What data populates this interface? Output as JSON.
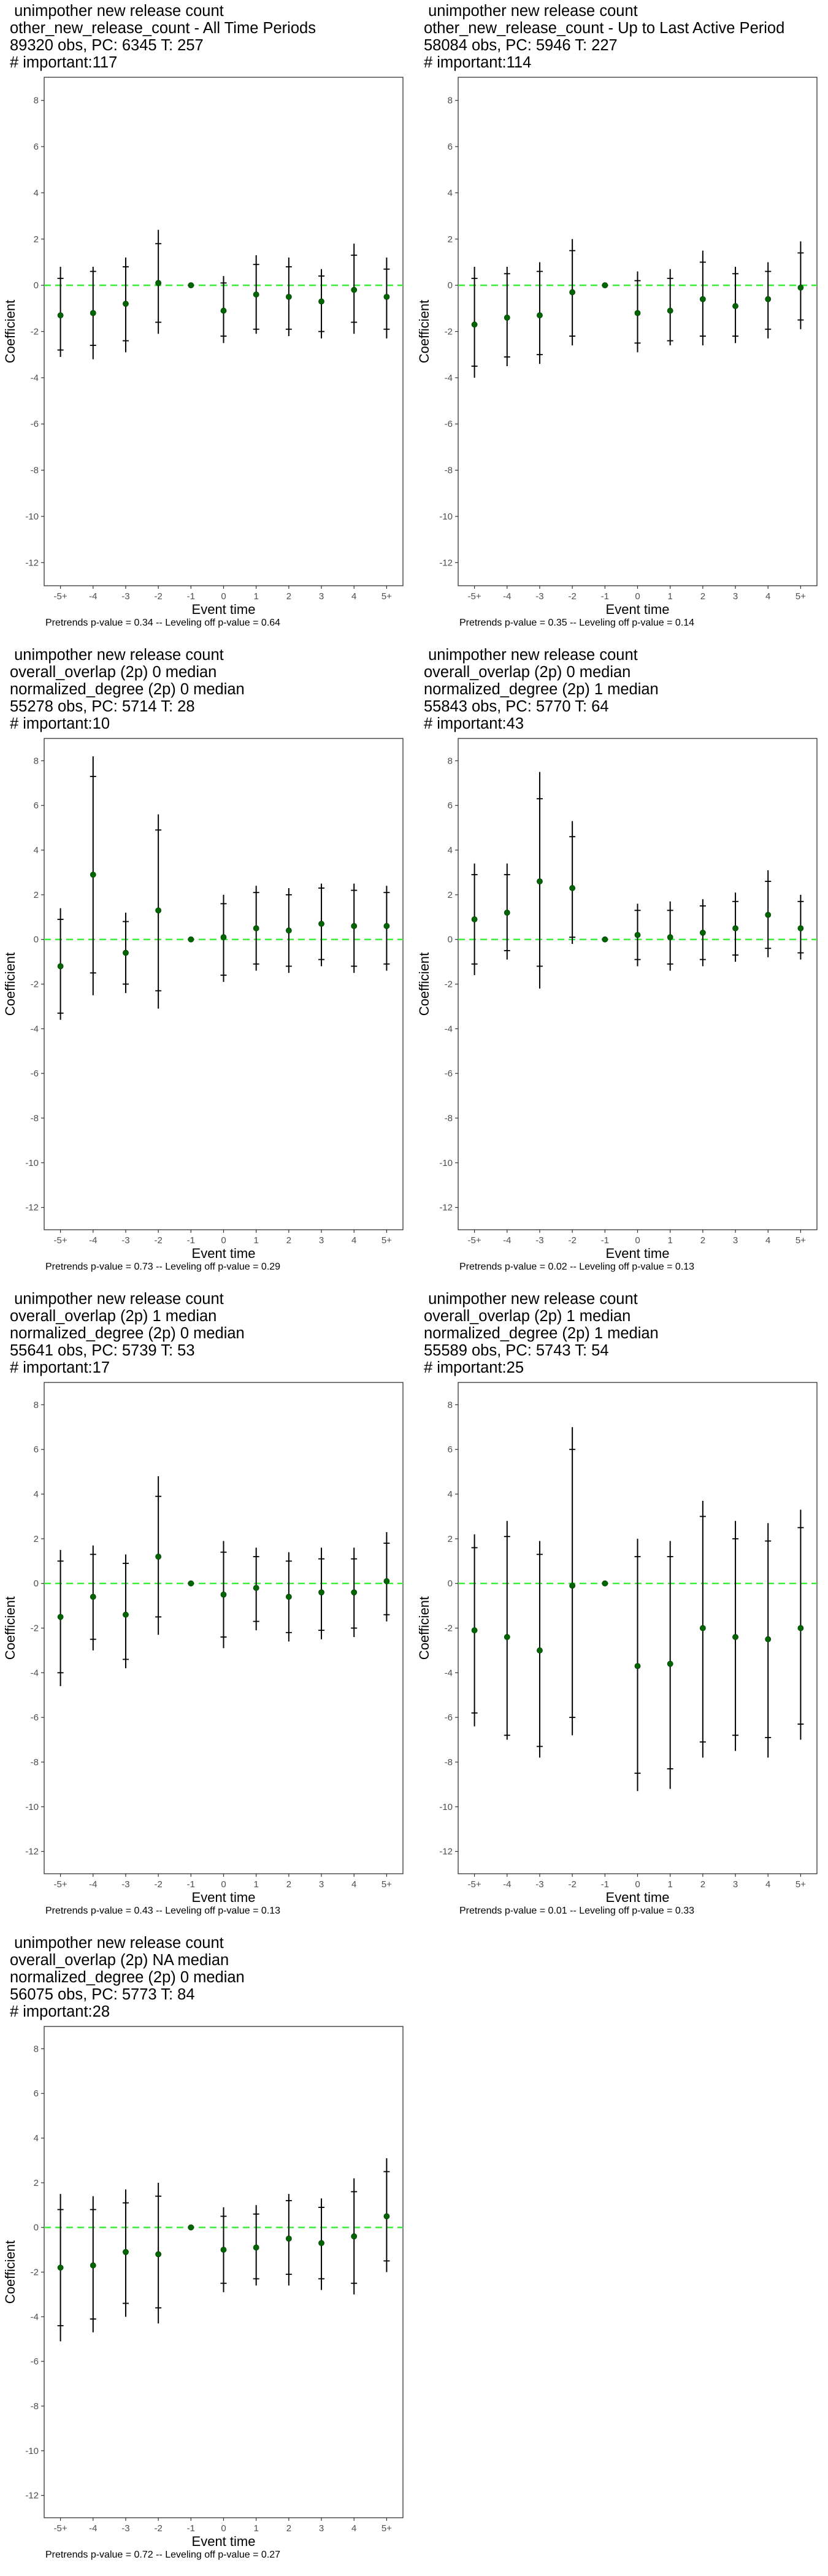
{
  "layout_note_free": true,
  "style": {
    "point_color": "#006400",
    "zero_line_color": "#33ee33",
    "bar_color": "#000000",
    "frame_color": "#333333"
  },
  "chart_data": [
    {
      "type": "errorbar",
      "title_lines": [
        " unimpother new release count",
        "other_new_release_count - All Time Periods",
        "89320 obs, PC: 6345 T: 257",
        "# important:117"
      ],
      "xlabel": "Event time",
      "ylabel": "Coefficient",
      "categories": [
        "-5+",
        "-4",
        "-3",
        "-2",
        "-1",
        "0",
        "1",
        "2",
        "3",
        "4",
        "5+"
      ],
      "yticks": [
        8,
        6,
        4,
        2,
        0,
        -2,
        -4,
        -6,
        -8,
        -10,
        -12
      ],
      "ylim": [
        -13,
        9
      ],
      "values": [
        -1.3,
        -1.2,
        -0.8,
        0.1,
        0.0,
        -1.1,
        -0.4,
        -0.5,
        -0.7,
        -0.2,
        -0.5
      ],
      "ci_outer": [
        [
          -3.1,
          0.8
        ],
        [
          -3.2,
          0.8
        ],
        [
          -2.9,
          1.2
        ],
        [
          -2.1,
          2.4
        ],
        [
          0.0,
          0.0
        ],
        [
          -2.5,
          0.4
        ],
        [
          -2.1,
          1.3
        ],
        [
          -2.2,
          1.2
        ],
        [
          -2.3,
          0.7
        ],
        [
          -2.1,
          1.8
        ],
        [
          -2.3,
          1.2
        ]
      ],
      "ci_inner": [
        [
          -2.8,
          0.3
        ],
        [
          -2.6,
          0.6
        ],
        [
          -2.4,
          0.8
        ],
        [
          -1.6,
          1.8
        ],
        [
          0.0,
          0.0
        ],
        [
          -2.2,
          0.1
        ],
        [
          -1.9,
          0.9
        ],
        [
          -1.9,
          0.8
        ],
        [
          -2.0,
          0.4
        ],
        [
          -1.6,
          1.3
        ],
        [
          -1.9,
          0.7
        ]
      ],
      "caption": "Pretrends p-value = 0.34 -- Leveling off p-value = 0.64"
    },
    {
      "type": "errorbar",
      "title_lines": [
        " unimpother new release count",
        "other_new_release_count - Up to Last Active Period",
        "58084 obs, PC: 5946 T: 227",
        "# important:114"
      ],
      "xlabel": "Event time",
      "ylabel": "Coefficient",
      "categories": [
        "-5+",
        "-4",
        "-3",
        "-2",
        "-1",
        "0",
        "1",
        "2",
        "3",
        "4",
        "5+"
      ],
      "yticks": [
        8,
        6,
        4,
        2,
        0,
        -2,
        -4,
        -6,
        -8,
        -10,
        -12
      ],
      "ylim": [
        -13,
        9
      ],
      "values": [
        -1.7,
        -1.4,
        -1.3,
        -0.3,
        0.0,
        -1.2,
        -1.1,
        -0.6,
        -0.9,
        -0.6,
        -0.1
      ],
      "ci_outer": [
        [
          -4.0,
          0.8
        ],
        [
          -3.5,
          0.8
        ],
        [
          -3.4,
          1.0
        ],
        [
          -2.6,
          2.0
        ],
        [
          0.0,
          0.0
        ],
        [
          -2.9,
          0.6
        ],
        [
          -2.6,
          0.7
        ],
        [
          -2.6,
          1.5
        ],
        [
          -2.5,
          0.8
        ],
        [
          -2.3,
          1.0
        ],
        [
          -1.9,
          1.9
        ]
      ],
      "ci_inner": [
        [
          -3.5,
          0.3
        ],
        [
          -3.1,
          0.5
        ],
        [
          -3.0,
          0.6
        ],
        [
          -2.2,
          1.5
        ],
        [
          0.0,
          0.0
        ],
        [
          -2.5,
          0.2
        ],
        [
          -2.4,
          0.3
        ],
        [
          -2.2,
          1.0
        ],
        [
          -2.2,
          0.5
        ],
        [
          -1.9,
          0.6
        ],
        [
          -1.5,
          1.4
        ]
      ],
      "caption": "Pretrends p-value = 0.35 -- Leveling off p-value = 0.14"
    },
    {
      "type": "errorbar",
      "title_lines": [
        " unimpother new release count",
        "overall_overlap (2p) 0 median",
        "normalized_degree (2p) 0 median",
        "55278 obs, PC: 5714 T: 28",
        "# important:10"
      ],
      "xlabel": "Event time",
      "ylabel": "Coefficient",
      "categories": [
        "-5+",
        "-4",
        "-3",
        "-2",
        "-1",
        "0",
        "1",
        "2",
        "3",
        "4",
        "5+"
      ],
      "yticks": [
        8,
        6,
        4,
        2,
        0,
        -2,
        -4,
        -6,
        -8,
        -10,
        -12
      ],
      "ylim": [
        -13,
        9
      ],
      "values": [
        -1.2,
        2.9,
        -0.6,
        1.3,
        0.0,
        0.1,
        0.5,
        0.4,
        0.7,
        0.6,
        0.6
      ],
      "ci_outer": [
        [
          -3.6,
          1.4
        ],
        [
          -2.5,
          8.2
        ],
        [
          -2.4,
          1.2
        ],
        [
          -3.1,
          5.6
        ],
        [
          0.0,
          0.0
        ],
        [
          -1.9,
          2.0
        ],
        [
          -1.4,
          2.4
        ],
        [
          -1.5,
          2.3
        ],
        [
          -1.2,
          2.5
        ],
        [
          -1.5,
          2.5
        ],
        [
          -1.4,
          2.4
        ]
      ],
      "ci_inner": [
        [
          -3.3,
          0.9
        ],
        [
          -1.5,
          7.3
        ],
        [
          -2.0,
          0.8
        ],
        [
          -2.3,
          4.9
        ],
        [
          0.0,
          0.0
        ],
        [
          -1.6,
          1.6
        ],
        [
          -1.1,
          2.1
        ],
        [
          -1.2,
          2.0
        ],
        [
          -0.9,
          2.3
        ],
        [
          -1.2,
          2.2
        ],
        [
          -1.1,
          2.1
        ]
      ],
      "caption": "Pretrends p-value = 0.73 -- Leveling off p-value = 0.29"
    },
    {
      "type": "errorbar",
      "title_lines": [
        " unimpother new release count",
        "overall_overlap (2p) 0 median",
        "normalized_degree (2p) 1 median",
        "55843 obs, PC: 5770 T: 64",
        "# important:43"
      ],
      "xlabel": "Event time",
      "ylabel": "Coefficient",
      "categories": [
        "-5+",
        "-4",
        "-3",
        "-2",
        "-1",
        "0",
        "1",
        "2",
        "3",
        "4",
        "5+"
      ],
      "yticks": [
        8,
        6,
        4,
        2,
        0,
        -2,
        -4,
        -6,
        -8,
        -10,
        -12
      ],
      "ylim": [
        -13,
        9
      ],
      "values": [
        0.9,
        1.2,
        2.6,
        2.3,
        0.0,
        0.2,
        0.1,
        0.3,
        0.5,
        1.1,
        0.5
      ],
      "ci_outer": [
        [
          -1.6,
          3.4
        ],
        [
          -0.9,
          3.4
        ],
        [
          -2.2,
          7.5
        ],
        [
          -0.2,
          5.3
        ],
        [
          0.0,
          0.0
        ],
        [
          -1.2,
          1.6
        ],
        [
          -1.4,
          1.7
        ],
        [
          -1.2,
          1.8
        ],
        [
          -1.0,
          2.1
        ],
        [
          -0.8,
          3.1
        ],
        [
          -0.9,
          2.0
        ]
      ],
      "ci_inner": [
        [
          -1.1,
          2.9
        ],
        [
          -0.5,
          2.9
        ],
        [
          -1.2,
          6.3
        ],
        [
          0.1,
          4.6
        ],
        [
          0.0,
          0.0
        ],
        [
          -0.9,
          1.3
        ],
        [
          -1.1,
          1.3
        ],
        [
          -0.9,
          1.5
        ],
        [
          -0.7,
          1.7
        ],
        [
          -0.4,
          2.6
        ],
        [
          -0.6,
          1.7
        ]
      ],
      "caption": "Pretrends p-value = 0.02 -- Leveling off p-value = 0.13"
    },
    {
      "type": "errorbar",
      "title_lines": [
        " unimpother new release count",
        "overall_overlap (2p) 1 median",
        "normalized_degree (2p) 0 median",
        "55641 obs, PC: 5739 T: 53",
        "# important:17"
      ],
      "xlabel": "Event time",
      "ylabel": "Coefficient",
      "categories": [
        "-5+",
        "-4",
        "-3",
        "-2",
        "-1",
        "0",
        "1",
        "2",
        "3",
        "4",
        "5+"
      ],
      "yticks": [
        8,
        6,
        4,
        2,
        0,
        -2,
        -4,
        -6,
        -8,
        -10,
        -12
      ],
      "ylim": [
        -13,
        9
      ],
      "values": [
        -1.5,
        -0.6,
        -1.4,
        1.2,
        0.0,
        -0.5,
        -0.2,
        -0.6,
        -0.4,
        -0.4,
        0.1
      ],
      "ci_outer": [
        [
          -4.6,
          1.5
        ],
        [
          -3.0,
          1.7
        ],
        [
          -3.8,
          1.3
        ],
        [
          -2.3,
          4.8
        ],
        [
          0.0,
          0.0
        ],
        [
          -2.9,
          1.9
        ],
        [
          -2.1,
          1.6
        ],
        [
          -2.6,
          1.4
        ],
        [
          -2.5,
          1.6
        ],
        [
          -2.4,
          1.6
        ],
        [
          -1.7,
          2.3
        ]
      ],
      "ci_inner": [
        [
          -4.0,
          1.0
        ],
        [
          -2.5,
          1.3
        ],
        [
          -3.4,
          0.9
        ],
        [
          -1.5,
          3.9
        ],
        [
          0.0,
          0.0
        ],
        [
          -2.4,
          1.4
        ],
        [
          -1.7,
          1.2
        ],
        [
          -2.2,
          1.0
        ],
        [
          -2.1,
          1.1
        ],
        [
          -2.0,
          1.1
        ],
        [
          -1.4,
          1.8
        ]
      ],
      "caption": "Pretrends p-value = 0.43 -- Leveling off p-value = 0.13"
    },
    {
      "type": "errorbar",
      "title_lines": [
        " unimpother new release count",
        "overall_overlap (2p) 1 median",
        "normalized_degree (2p) 1 median",
        "55589 obs, PC: 5743 T: 54",
        "# important:25"
      ],
      "xlabel": "Event time",
      "ylabel": "Coefficient",
      "categories": [
        "-5+",
        "-4",
        "-3",
        "-2",
        "-1",
        "0",
        "1",
        "2",
        "3",
        "4",
        "5+"
      ],
      "yticks": [
        8,
        6,
        4,
        2,
        0,
        -2,
        -4,
        -6,
        -8,
        -10,
        -12
      ],
      "ylim": [
        -13,
        9
      ],
      "values": [
        -2.1,
        -2.4,
        -3.0,
        -0.1,
        0.0,
        -3.7,
        -3.6,
        -2.0,
        -2.4,
        -2.5,
        -2.0
      ],
      "ci_outer": [
        [
          -6.4,
          2.2
        ],
        [
          -7.0,
          2.8
        ],
        [
          -7.8,
          1.9
        ],
        [
          -6.8,
          7.0
        ],
        [
          0.0,
          0.0
        ],
        [
          -9.3,
          2.0
        ],
        [
          -9.2,
          1.9
        ],
        [
          -7.8,
          3.7
        ],
        [
          -7.5,
          2.8
        ],
        [
          -7.8,
          2.7
        ],
        [
          -7.0,
          3.3
        ]
      ],
      "ci_inner": [
        [
          -5.8,
          1.6
        ],
        [
          -6.8,
          2.1
        ],
        [
          -7.3,
          1.3
        ],
        [
          -6.0,
          6.0
        ],
        [
          0.0,
          0.0
        ],
        [
          -8.5,
          1.2
        ],
        [
          -8.3,
          1.2
        ],
        [
          -7.1,
          3.0
        ],
        [
          -6.8,
          2.0
        ],
        [
          -6.9,
          1.9
        ],
        [
          -6.3,
          2.5
        ]
      ],
      "caption": "Pretrends p-value = 0.01 -- Leveling off p-value = 0.33"
    },
    {
      "type": "errorbar",
      "title_lines": [
        " unimpother new release count",
        "overall_overlap (2p) NA median",
        "normalized_degree (2p) 0 median",
        "56075 obs, PC: 5773 T: 84",
        "# important:28"
      ],
      "xlabel": "Event time",
      "ylabel": "Coefficient",
      "categories": [
        "-5+",
        "-4",
        "-3",
        "-2",
        "-1",
        "0",
        "1",
        "2",
        "3",
        "4",
        "5+"
      ],
      "yticks": [
        8,
        6,
        4,
        2,
        0,
        -2,
        -4,
        -6,
        -8,
        -10,
        -12
      ],
      "ylim": [
        -13,
        9
      ],
      "values": [
        -1.8,
        -1.7,
        -1.1,
        -1.2,
        0.0,
        -1.0,
        -0.9,
        -0.5,
        -0.7,
        -0.4,
        0.5
      ],
      "ci_outer": [
        [
          -5.1,
          1.5
        ],
        [
          -4.7,
          1.4
        ],
        [
          -4.0,
          1.7
        ],
        [
          -4.3,
          2.0
        ],
        [
          0.0,
          0.0
        ],
        [
          -2.9,
          0.9
        ],
        [
          -2.6,
          1.0
        ],
        [
          -2.6,
          1.5
        ],
        [
          -2.8,
          1.3
        ],
        [
          -3.0,
          2.2
        ],
        [
          -2.0,
          3.1
        ]
      ],
      "ci_inner": [
        [
          -4.4,
          0.8
        ],
        [
          -4.1,
          0.8
        ],
        [
          -3.4,
          1.1
        ],
        [
          -3.6,
          1.4
        ],
        [
          0.0,
          0.0
        ],
        [
          -2.5,
          0.5
        ],
        [
          -2.3,
          0.6
        ],
        [
          -2.1,
          1.2
        ],
        [
          -2.3,
          0.9
        ],
        [
          -2.5,
          1.6
        ],
        [
          -1.5,
          2.5
        ]
      ],
      "caption": "Pretrends p-value = 0.72 -- Leveling off p-value = 0.27"
    }
  ]
}
